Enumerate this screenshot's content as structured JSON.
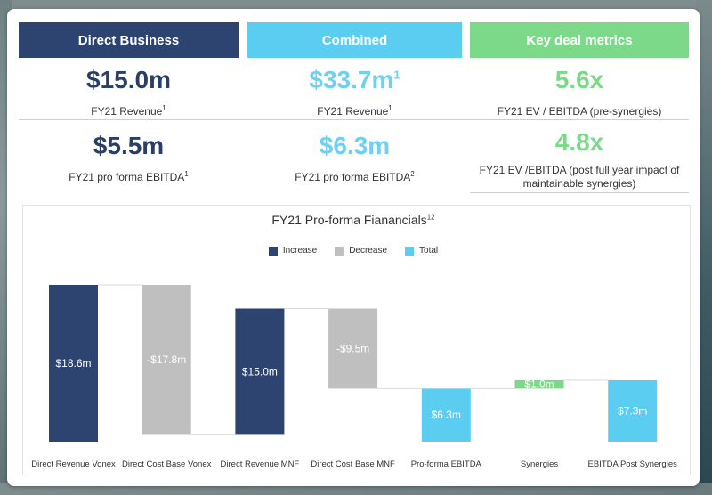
{
  "headers": {
    "direct": "Direct Business",
    "combined": "Combined",
    "deal": "Key deal metrics"
  },
  "metrics": {
    "direct_revenue": {
      "value": "$15.0m",
      "label": "FY21 Revenue",
      "sup": "1"
    },
    "combined_revenue": {
      "value": "$33.7m",
      "value_sup": "1",
      "label": "FY21 Revenue",
      "sup": "1"
    },
    "ev_ebitda_pre": {
      "value": "5.6x",
      "label": "FY21 EV / EBITDA (pre-synergies)"
    },
    "direct_ebitda": {
      "value": "$5.5m",
      "label": "FY21 pro forma EBITDA",
      "sup": "1"
    },
    "combined_ebitda": {
      "value": "$6.3m",
      "label": "FY21 pro forma EBITDA",
      "sup": "2"
    },
    "ev_ebitda_post": {
      "value": "4.8x",
      "label": "FY21 EV /EBITDA (post full year impact of maintainable synergies)"
    }
  },
  "colors": {
    "increase": "#2e4470",
    "decrease": "#bfbfbf",
    "total": "#5bcdf1",
    "synergy": "#7dd98a"
  },
  "chart_data": {
    "type": "bar",
    "subtype": "waterfall",
    "title": "FY21 Pro-forma Fianancials",
    "title_sup": "12",
    "legend": [
      "Increase",
      "Decrease",
      "Total"
    ],
    "legend_position": "top-center",
    "categories": [
      "Direct Revenue Vonex",
      "Direct Cost Base Vonex",
      "Direct Revenue MNF",
      "Direct Cost Base MNF",
      "Pro-forma EBITDA",
      "Synergies",
      "EBITDA Post Synergies"
    ],
    "values": [
      18.6,
      -17.8,
      15.0,
      -9.5,
      6.3,
      1.0,
      7.3
    ],
    "kinds": [
      "increase",
      "decrease",
      "increase",
      "decrease",
      "total",
      "increase",
      "total"
    ],
    "data_labels": [
      "$18.6m",
      "-$17.8m",
      "$15.0m",
      "-$9.5m",
      "$6.3m",
      "$1.0m",
      "$7.3m"
    ],
    "bar_colors": [
      "#2e4470",
      "#bfbfbf",
      "#2e4470",
      "#bfbfbf",
      "#5bcdf1",
      "#7dd98a",
      "#5bcdf1"
    ],
    "label_colors": [
      "#ffffff",
      "#ffffff",
      "#ffffff",
      "#ffffff",
      "#ffffff",
      "#ffffff",
      "#ffffff"
    ],
    "xlabel": "",
    "ylabel": "",
    "ylim": [
      0,
      18.6
    ],
    "grid": false
  }
}
